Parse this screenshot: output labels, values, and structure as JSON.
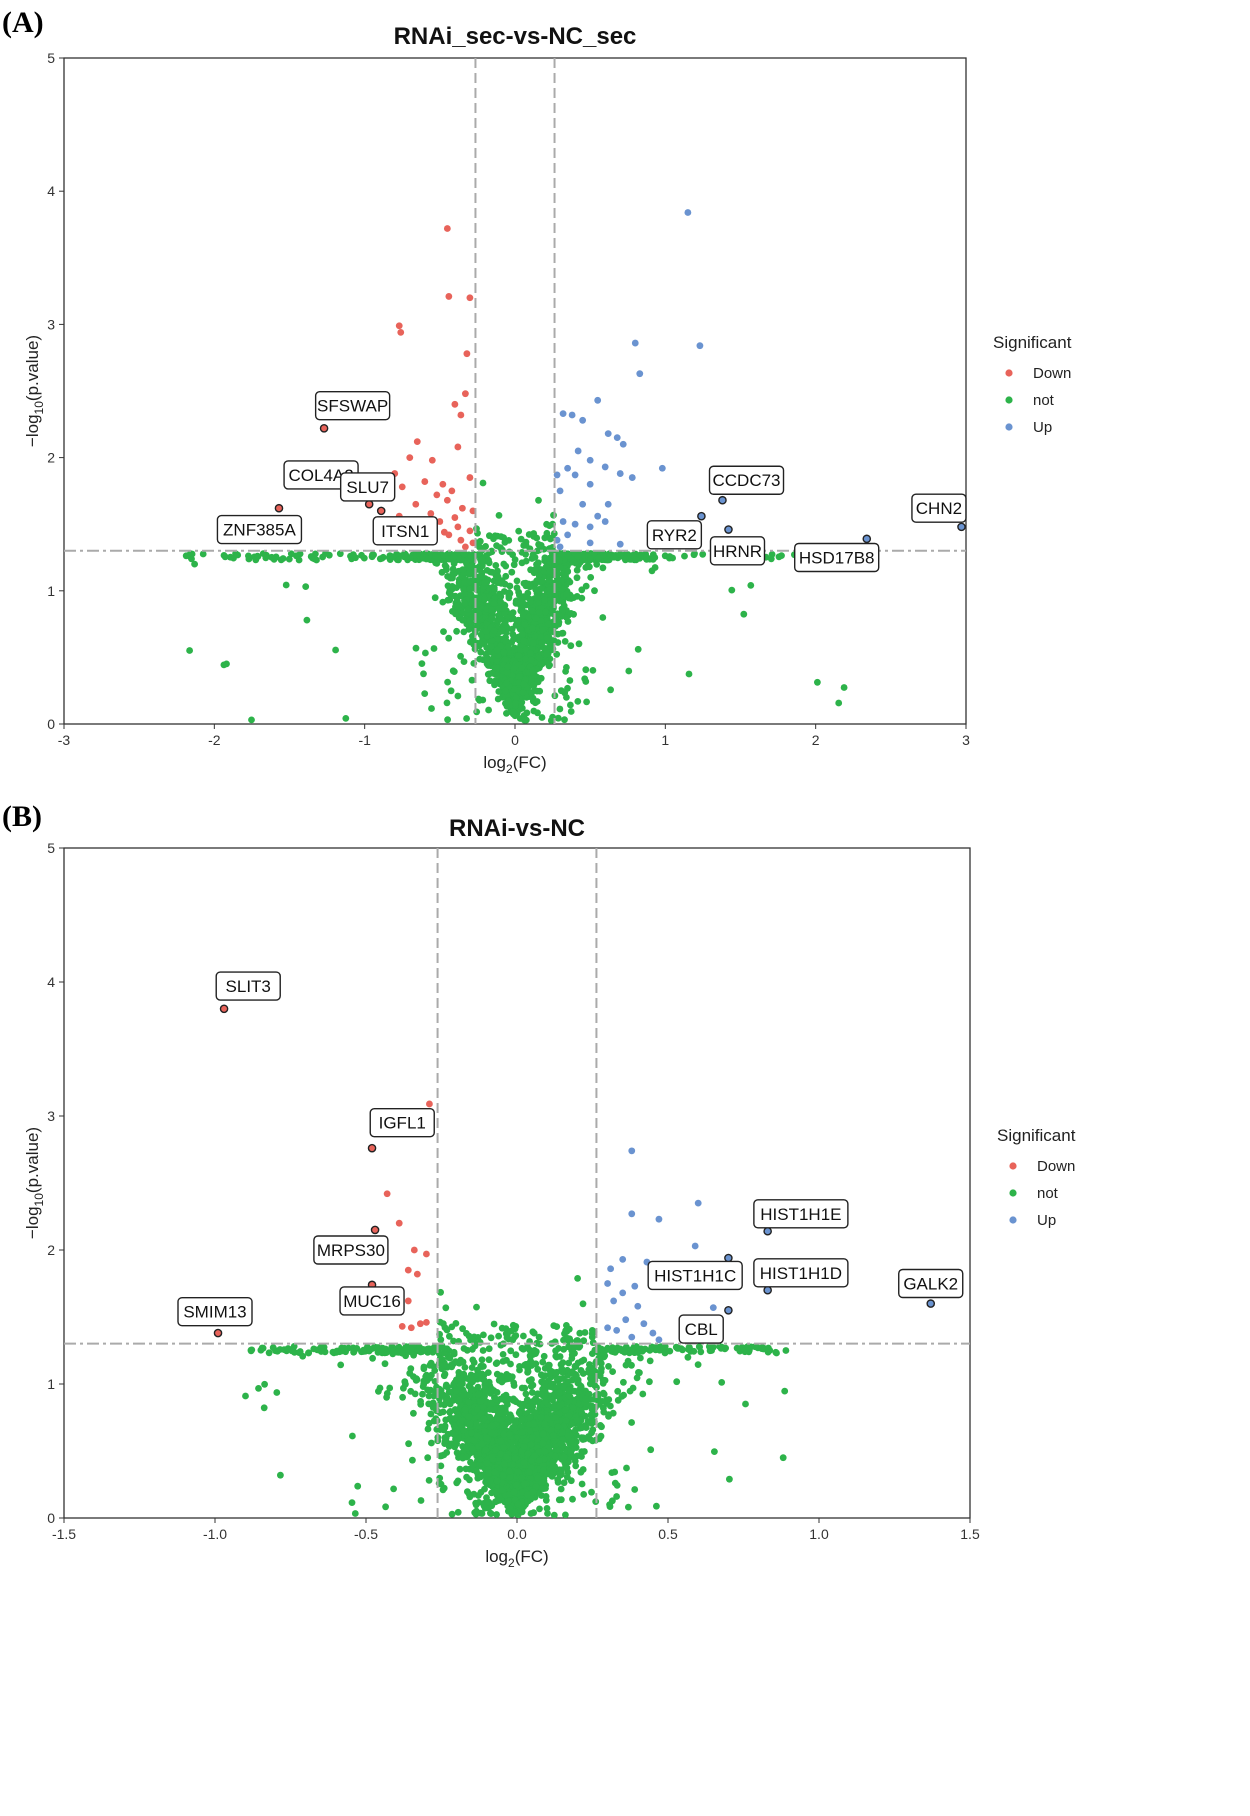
{
  "colors": {
    "down": "#E8635A",
    "not": "#2DB34A",
    "up": "#6A93D0",
    "grid": "#AAAAAA"
  },
  "chart_data": [
    {
      "panel": "(A)",
      "type": "scatter",
      "title": "RNAi_sec-vs-NC_sec",
      "xlabel": "log",
      "xlabel_sub": "2",
      "xlabel_tail": "(FC)",
      "ylabel": "−log",
      "ylabel_sub": "10",
      "ylabel_tail": "(p.value)",
      "xlim": [
        -3,
        3
      ],
      "ylim": [
        0,
        5
      ],
      "xticks": [
        -3,
        -2,
        -1,
        0,
        1,
        2,
        3
      ],
      "yticks": [
        0,
        1,
        2,
        3,
        4,
        5
      ],
      "fc_threshold": 0.263,
      "p_threshold": 1.301,
      "legend_title": "Significant",
      "legend": [
        "Down",
        "not",
        "Up"
      ],
      "n_not": 2200,
      "not_seed": 11,
      "down_points": [
        [
          -0.45,
          3.72
        ],
        [
          -0.44,
          3.21
        ],
        [
          -0.3,
          3.2
        ],
        [
          -0.77,
          2.99
        ],
        [
          -0.76,
          2.94
        ],
        [
          -0.32,
          2.78
        ],
        [
          -0.33,
          2.48
        ],
        [
          -0.4,
          2.4
        ],
        [
          -0.36,
          2.32
        ],
        [
          -0.65,
          2.12
        ],
        [
          -0.7,
          2.0
        ],
        [
          -0.38,
          2.08
        ],
        [
          -0.55,
          1.98
        ],
        [
          -0.8,
          1.88
        ],
        [
          -0.6,
          1.82
        ],
        [
          -0.75,
          1.78
        ],
        [
          -0.48,
          1.8
        ],
        [
          -0.3,
          1.85
        ],
        [
          -0.42,
          1.75
        ],
        [
          -0.52,
          1.72
        ],
        [
          -0.66,
          1.65
        ],
        [
          -0.45,
          1.68
        ],
        [
          -0.35,
          1.62
        ],
        [
          -0.28,
          1.6
        ],
        [
          -0.4,
          1.55
        ],
        [
          -0.5,
          1.52
        ],
        [
          -0.38,
          1.48
        ],
        [
          -0.3,
          1.45
        ],
        [
          -0.44,
          1.42
        ],
        [
          -0.36,
          1.38
        ],
        [
          -0.28,
          1.36
        ],
        [
          -0.33,
          1.33
        ],
        [
          -0.47,
          1.44
        ],
        [
          -0.56,
          1.58
        ],
        [
          -0.77,
          1.56
        ]
      ],
      "up_points": [
        [
          1.15,
          3.84
        ],
        [
          0.8,
          2.86
        ],
        [
          1.23,
          2.84
        ],
        [
          0.83,
          2.63
        ],
        [
          0.32,
          2.33
        ],
        [
          0.38,
          2.32
        ],
        [
          0.55,
          2.43
        ],
        [
          0.45,
          2.28
        ],
        [
          0.62,
          2.18
        ],
        [
          0.68,
          2.15
        ],
        [
          0.72,
          2.1
        ],
        [
          0.42,
          2.05
        ],
        [
          0.5,
          1.98
        ],
        [
          0.35,
          1.92
        ],
        [
          0.6,
          1.93
        ],
        [
          0.98,
          1.92
        ],
        [
          0.28,
          1.87
        ],
        [
          0.4,
          1.87
        ],
        [
          0.7,
          1.88
        ],
        [
          0.78,
          1.85
        ],
        [
          0.5,
          1.8
        ],
        [
          0.3,
          1.75
        ],
        [
          0.45,
          1.65
        ],
        [
          0.62,
          1.65
        ],
        [
          0.55,
          1.56
        ],
        [
          0.32,
          1.52
        ],
        [
          0.4,
          1.5
        ],
        [
          0.5,
          1.48
        ],
        [
          0.6,
          1.52
        ],
        [
          0.35,
          1.42
        ],
        [
          0.28,
          1.38
        ],
        [
          0.5,
          1.36
        ],
        [
          0.7,
          1.35
        ],
        [
          0.3,
          1.33
        ]
      ],
      "labels": [
        {
          "name": "SFSWAP",
          "x": -1.27,
          "y": 2.22,
          "color": "down"
        },
        {
          "name": "COL4A2",
          "x": -1.1,
          "y": 1.74,
          "color": "down"
        },
        {
          "name": "SLU7",
          "x": -0.97,
          "y": 1.65,
          "color": "down"
        },
        {
          "name": "ZNF385A",
          "x": -1.57,
          "y": 1.62,
          "color": "down"
        },
        {
          "name": "ITSN1",
          "x": -0.89,
          "y": 1.6,
          "color": "down"
        },
        {
          "name": "CCDC73",
          "x": 1.38,
          "y": 1.68,
          "color": "up"
        },
        {
          "name": "RYR2",
          "x": 1.24,
          "y": 1.56,
          "color": "up"
        },
        {
          "name": "HRNR",
          "x": 1.42,
          "y": 1.46,
          "color": "up"
        },
        {
          "name": "CHN2",
          "x": 2.97,
          "y": 1.48,
          "color": "up"
        },
        {
          "name": "HSD17B8",
          "x": 2.34,
          "y": 1.39,
          "color": "up"
        }
      ]
    },
    {
      "panel": "(B)",
      "type": "scatter",
      "title": "RNAi-vs-NC",
      "xlabel": "log",
      "xlabel_sub": "2",
      "xlabel_tail": "(FC)",
      "ylabel": "−log",
      "ylabel_sub": "10",
      "ylabel_tail": "(p.value)",
      "xlim": [
        -1.5,
        1.5
      ],
      "ylim": [
        0,
        5
      ],
      "xticks": [
        -1.5,
        -1.0,
        -0.5,
        0.0,
        0.5,
        1.0,
        1.5
      ],
      "yticks": [
        0,
        1,
        2,
        3,
        4,
        5
      ],
      "fc_threshold": 0.263,
      "p_threshold": 1.301,
      "legend_title": "Significant",
      "legend": [
        "Down",
        "not",
        "Up"
      ],
      "n_not": 3000,
      "not_seed": 29,
      "down_points": [
        [
          -0.29,
          3.09
        ],
        [
          -0.43,
          2.42
        ],
        [
          -0.39,
          2.2
        ],
        [
          -0.34,
          2.0
        ],
        [
          -0.3,
          1.97
        ],
        [
          -0.36,
          1.85
        ],
        [
          -0.33,
          1.82
        ],
        [
          -0.36,
          1.62
        ],
        [
          -0.39,
          1.55
        ],
        [
          -0.32,
          1.45
        ],
        [
          -0.35,
          1.42
        ],
        [
          -0.38,
          1.43
        ],
        [
          -0.3,
          1.46
        ]
      ],
      "up_points": [
        [
          0.38,
          2.74
        ],
        [
          0.6,
          2.35
        ],
        [
          0.38,
          2.27
        ],
        [
          0.47,
          2.23
        ],
        [
          0.59,
          2.03
        ],
        [
          0.35,
          1.93
        ],
        [
          0.43,
          1.91
        ],
        [
          0.31,
          1.86
        ],
        [
          0.3,
          1.75
        ],
        [
          0.39,
          1.73
        ],
        [
          0.35,
          1.68
        ],
        [
          0.32,
          1.62
        ],
        [
          0.4,
          1.58
        ],
        [
          0.65,
          1.57
        ],
        [
          0.36,
          1.48
        ],
        [
          0.42,
          1.45
        ],
        [
          0.3,
          1.42
        ],
        [
          0.33,
          1.4
        ],
        [
          0.45,
          1.38
        ],
        [
          0.38,
          1.35
        ],
        [
          0.47,
          1.33
        ]
      ],
      "labels": [
        {
          "name": "SLIT3",
          "x": -0.97,
          "y": 3.8,
          "color": "down"
        },
        {
          "name": "IGFL1",
          "x": -0.48,
          "y": 2.76,
          "color": "down"
        },
        {
          "name": "MRPS30",
          "x": -0.47,
          "y": 2.15,
          "color": "down"
        },
        {
          "name": "MUC16",
          "x": -0.48,
          "y": 1.74,
          "color": "down"
        },
        {
          "name": "SMIM13",
          "x": -0.99,
          "y": 1.38,
          "color": "down"
        },
        {
          "name": "HIST1H1E",
          "x": 0.83,
          "y": 2.14,
          "color": "up"
        },
        {
          "name": "HIST1H1C",
          "x": 0.7,
          "y": 1.94,
          "color": "up"
        },
        {
          "name": "HIST1H1D",
          "x": 0.83,
          "y": 1.7,
          "color": "up"
        },
        {
          "name": "CBL",
          "x": 0.7,
          "y": 1.55,
          "color": "up"
        },
        {
          "name": "GALK2",
          "x": 1.37,
          "y": 1.6,
          "color": "up"
        }
      ]
    }
  ]
}
